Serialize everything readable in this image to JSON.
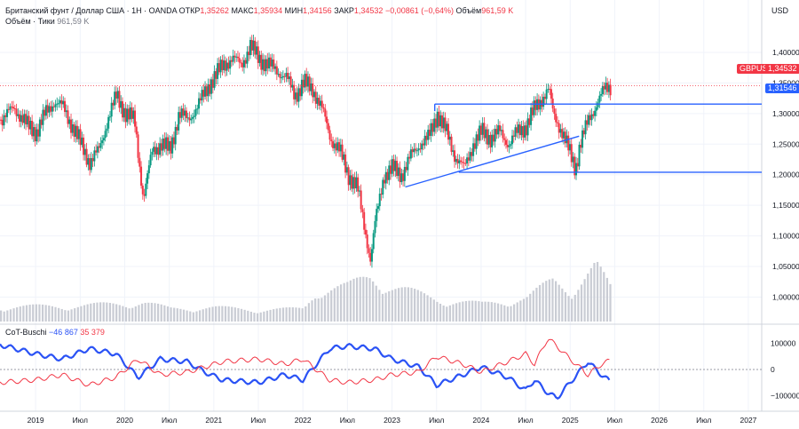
{
  "header": {
    "instrument": "Британский фунт / Доллар США · 1Н · OANDA",
    "open_label": "ОТКР",
    "open_value": "1,35262",
    "high_label": "МАКС",
    "high_value": "1,35934",
    "low_label": "МИН",
    "low_value": "1,34156",
    "close_label": "ЗАКР",
    "close_value": "1,34532",
    "change_value": "−0,00861 (−0,64%)",
    "volume_label": "Объём",
    "volume_value": "961,59 K",
    "volume_line_label": "Объём · Тики",
    "volume_line_value": "961,59 K"
  },
  "cot_legend": {
    "name": "CoT-Buschi",
    "value_blue": "−46 867",
    "value_red": "35 379"
  },
  "price_axis": {
    "currency": "USD",
    "ticks": [
      "1,40000",
      "1,35000",
      "1,30000",
      "1,25000",
      "1,20000",
      "1,15000",
      "1,10000",
      "1,05000",
      "1,00000"
    ],
    "symbol_tag": "GBPUSD",
    "last_price": "1,34532",
    "line_tag": "1,31546"
  },
  "cot_axis": {
    "ticks": [
      "100000",
      "0",
      "−100000"
    ]
  },
  "time_axis": {
    "ticks": [
      "2019",
      "Июл",
      "2020",
      "Июл",
      "2021",
      "Июл",
      "2022",
      "Июл",
      "2023",
      "Июл",
      "2024",
      "Июл",
      "2025",
      "Июл",
      "2026",
      "Июл",
      "2027"
    ]
  },
  "colors": {
    "up": "#089981",
    "down": "#f23645",
    "blue": "#2962ff",
    "cot_blue": "#2a52f5",
    "cot_red": "#f23645"
  },
  "chart_data": {
    "type": "candlestick",
    "symbol": "GBPUSD",
    "ylim": [
      0.96,
      1.445
    ],
    "xlim": [
      2018.6,
      2027.15
    ],
    "price_path": [
      [
        2018.6,
        1.29
      ],
      [
        2018.75,
        1.31
      ],
      [
        2018.9,
        1.28
      ],
      [
        2019.0,
        1.27
      ],
      [
        2019.1,
        1.3
      ],
      [
        2019.2,
        1.32
      ],
      [
        2019.3,
        1.31
      ],
      [
        2019.4,
        1.28
      ],
      [
        2019.5,
        1.25
      ],
      [
        2019.6,
        1.22
      ],
      [
        2019.7,
        1.24
      ],
      [
        2019.8,
        1.29
      ],
      [
        2019.9,
        1.33
      ],
      [
        2020.0,
        1.3
      ],
      [
        2020.1,
        1.29
      ],
      [
        2020.2,
        1.16
      ],
      [
        2020.3,
        1.24
      ],
      [
        2020.4,
        1.25
      ],
      [
        2020.5,
        1.24
      ],
      [
        2020.6,
        1.3
      ],
      [
        2020.7,
        1.29
      ],
      [
        2020.8,
        1.31
      ],
      [
        2020.95,
        1.35
      ],
      [
        2021.1,
        1.38
      ],
      [
        2021.2,
        1.39
      ],
      [
        2021.3,
        1.38
      ],
      [
        2021.4,
        1.41
      ],
      [
        2021.5,
        1.39
      ],
      [
        2021.6,
        1.38
      ],
      [
        2021.7,
        1.37
      ],
      [
        2021.8,
        1.36
      ],
      [
        2021.9,
        1.33
      ],
      [
        2022.0,
        1.35
      ],
      [
        2022.1,
        1.34
      ],
      [
        2022.2,
        1.31
      ],
      [
        2022.3,
        1.26
      ],
      [
        2022.4,
        1.24
      ],
      [
        2022.5,
        1.2
      ],
      [
        2022.6,
        1.18
      ],
      [
        2022.7,
        1.1
      ],
      [
        2022.75,
        1.06
      ],
      [
        2022.8,
        1.12
      ],
      [
        2022.9,
        1.2
      ],
      [
        2023.0,
        1.21
      ],
      [
        2023.1,
        1.2
      ],
      [
        2023.2,
        1.23
      ],
      [
        2023.3,
        1.25
      ],
      [
        2023.4,
        1.26
      ],
      [
        2023.5,
        1.3
      ],
      [
        2023.6,
        1.27
      ],
      [
        2023.7,
        1.23
      ],
      [
        2023.8,
        1.21
      ],
      [
        2023.9,
        1.25
      ],
      [
        2024.0,
        1.27
      ],
      [
        2024.1,
        1.26
      ],
      [
        2024.2,
        1.27
      ],
      [
        2024.3,
        1.25
      ],
      [
        2024.4,
        1.27
      ],
      [
        2024.5,
        1.28
      ],
      [
        2024.6,
        1.31
      ],
      [
        2024.7,
        1.33
      ],
      [
        2024.75,
        1.34
      ],
      [
        2024.8,
        1.3
      ],
      [
        2024.9,
        1.27
      ],
      [
        2025.0,
        1.23
      ],
      [
        2025.05,
        1.21
      ],
      [
        2025.1,
        1.25
      ],
      [
        2025.2,
        1.29
      ],
      [
        2025.3,
        1.32
      ],
      [
        2025.38,
        1.34
      ],
      [
        2025.45,
        1.345
      ]
    ],
    "horizontal_lines": [
      1.31546,
      1.204
    ],
    "resistance_segment": {
      "x0": 2023.48,
      "x1": 2025.15,
      "y": 1.3155
    },
    "support_segment": {
      "x0": 2023.75,
      "x1": 2027.15,
      "y": 1.204
    },
    "trendline": {
      "x0": 2023.15,
      "y0": 1.18,
      "x1": 2025.1,
      "y1": 1.263
    },
    "last_close": 1.34532,
    "volume": {
      "label": "Объём",
      "path": [
        [
          2018.6,
          0.25
        ],
        [
          2019.5,
          0.27
        ],
        [
          2020.2,
          0.33
        ],
        [
          2020.5,
          0.22
        ],
        [
          2021.0,
          0.24
        ],
        [
          2021.5,
          0.2
        ],
        [
          2022.0,
          0.22
        ],
        [
          2022.15,
          0.55
        ],
        [
          2022.5,
          0.6
        ],
        [
          2022.75,
          0.78
        ],
        [
          2023.0,
          0.6
        ],
        [
          2023.5,
          0.38
        ],
        [
          2024.0,
          0.3
        ],
        [
          2024.5,
          0.4
        ],
        [
          2024.8,
          0.7
        ],
        [
          2025.0,
          0.55
        ],
        [
          2025.28,
          0.95
        ],
        [
          2025.45,
          0.55
        ]
      ]
    },
    "cot": {
      "name": "CoT-Buschi",
      "ylim": [
        -150000,
        150000
      ],
      "ticks": [
        100000,
        0,
        -100000
      ],
      "series": [
        {
          "name": "blue",
          "values": [
            [
              2018.6,
              95000
            ],
            [
              2019.0,
              60000
            ],
            [
              2019.3,
              40000
            ],
            [
              2019.6,
              80000
            ],
            [
              2019.9,
              60000
            ],
            [
              2020.15,
              -30000
            ],
            [
              2020.4,
              40000
            ],
            [
              2020.7,
              30000
            ],
            [
              2020.9,
              -10000
            ],
            [
              2021.1,
              -40000
            ],
            [
              2021.5,
              -50000
            ],
            [
              2021.8,
              -20000
            ],
            [
              2022.0,
              -40000
            ],
            [
              2022.3,
              80000
            ],
            [
              2022.5,
              90000
            ],
            [
              2022.8,
              80000
            ],
            [
              2023.0,
              40000
            ],
            [
              2023.3,
              10000
            ],
            [
              2023.5,
              -60000
            ],
            [
              2023.8,
              -20000
            ],
            [
              2024.0,
              10000
            ],
            [
              2024.3,
              -30000
            ],
            [
              2024.5,
              -80000
            ],
            [
              2024.6,
              -40000
            ],
            [
              2024.75,
              -90000
            ],
            [
              2024.85,
              -110000
            ],
            [
              2025.0,
              -50000
            ],
            [
              2025.2,
              30000
            ],
            [
              2025.35,
              -20000
            ],
            [
              2025.45,
              -46867
            ]
          ]
        },
        {
          "name": "red",
          "values": [
            [
              2018.6,
              -50000
            ],
            [
              2019.0,
              -40000
            ],
            [
              2019.3,
              -20000
            ],
            [
              2019.6,
              -60000
            ],
            [
              2019.9,
              -30000
            ],
            [
              2020.15,
              40000
            ],
            [
              2020.4,
              -20000
            ],
            [
              2020.7,
              -10000
            ],
            [
              2020.9,
              10000
            ],
            [
              2021.1,
              30000
            ],
            [
              2021.5,
              40000
            ],
            [
              2021.8,
              20000
            ],
            [
              2022.0,
              40000
            ],
            [
              2022.3,
              -40000
            ],
            [
              2022.5,
              -50000
            ],
            [
              2022.8,
              -40000
            ],
            [
              2023.0,
              -20000
            ],
            [
              2023.3,
              -10000
            ],
            [
              2023.5,
              50000
            ],
            [
              2023.8,
              20000
            ],
            [
              2024.0,
              -10000
            ],
            [
              2024.3,
              30000
            ],
            [
              2024.5,
              60000
            ],
            [
              2024.6,
              20000
            ],
            [
              2024.75,
              120000
            ],
            [
              2024.85,
              90000
            ],
            [
              2025.0,
              40000
            ],
            [
              2025.2,
              -20000
            ],
            [
              2025.35,
              20000
            ],
            [
              2025.45,
              35379
            ]
          ]
        }
      ]
    }
  }
}
